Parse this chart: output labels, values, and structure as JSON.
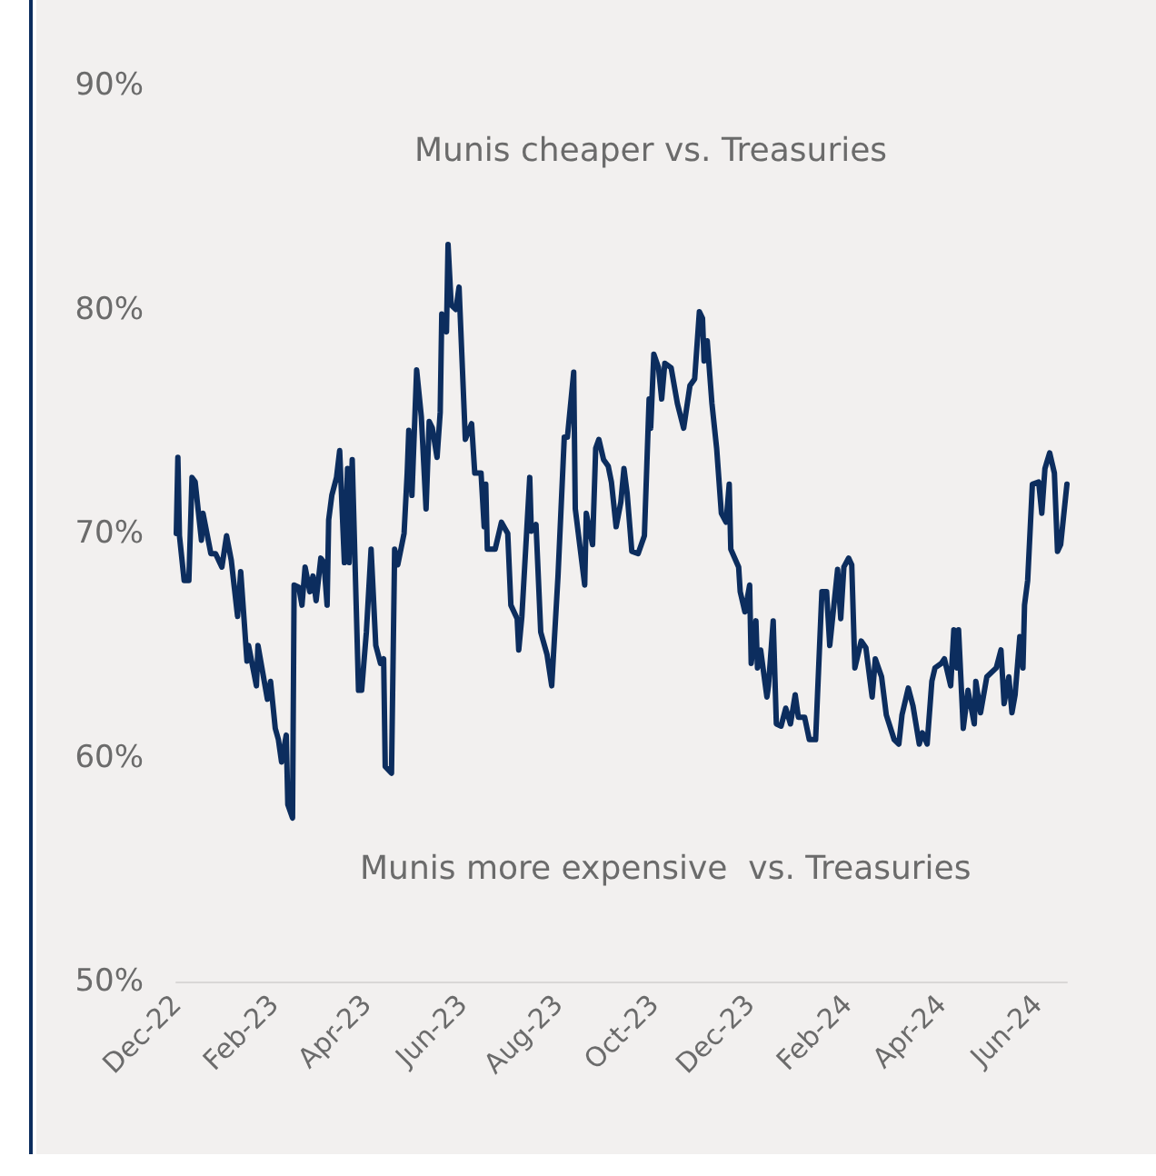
{
  "chart_data": {
    "type": "line",
    "annotations": [
      "Munis cheaper vs. Treasuries",
      "Munis more expensive  vs. Treasuries"
    ],
    "x": [
      "2022-12-01",
      "2022-12-02",
      "2022-12-03",
      "2022-12-06",
      "2022-12-09",
      "2022-12-11",
      "2022-12-13",
      "2022-12-17",
      "2022-12-18",
      "2022-12-23",
      "2022-12-26",
      "2022-12-30",
      "2023-01-02",
      "2023-01-05",
      "2023-01-09",
      "2023-01-11",
      "2023-01-15",
      "2023-01-16",
      "2023-01-21",
      "2023-01-22",
      "2023-01-28",
      "2023-01-30",
      "2023-02-02",
      "2023-02-04",
      "2023-02-06",
      "2023-02-09",
      "2023-02-10",
      "2023-02-13",
      "2023-02-14",
      "2023-02-17",
      "2023-02-19",
      "2023-02-21",
      "2023-02-24",
      "2023-02-26",
      "2023-02-28",
      "2023-03-03",
      "2023-03-05",
      "2023-03-07",
      "2023-03-08",
      "2023-03-10",
      "2023-03-13",
      "2023-03-15",
      "2023-03-18",
      "2023-03-20",
      "2023-03-21",
      "2023-03-23",
      "2023-03-27",
      "2023-03-29",
      "2023-04-01",
      "2023-04-04",
      "2023-04-07",
      "2023-04-10",
      "2023-04-12",
      "2023-04-13",
      "2023-04-17",
      "2023-04-19",
      "2023-04-21",
      "2023-04-25",
      "2023-04-27",
      "2023-04-28",
      "2023-04-30",
      "2023-05-03",
      "2023-05-06",
      "2023-05-09",
      "2023-05-11",
      "2023-05-13",
      "2023-05-16",
      "2023-05-18",
      "2023-05-19",
      "2023-05-22",
      "2023-05-23",
      "2023-05-25",
      "2023-05-28",
      "2023-05-30",
      "2023-06-03",
      "2023-06-07",
      "2023-06-09",
      "2023-06-13",
      "2023-06-15",
      "2023-06-16",
      "2023-06-17",
      "2023-06-22",
      "2023-06-26",
      "2023-06-30",
      "2023-07-02",
      "2023-07-06",
      "2023-07-07",
      "2023-07-09",
      "2023-07-14",
      "2023-07-15",
      "2023-07-18",
      "2023-07-21",
      "2023-07-25",
      "2023-07-28",
      "2023-08-01",
      "2023-08-05",
      "2023-08-07",
      "2023-08-11",
      "2023-08-12",
      "2023-08-18",
      "2023-08-19",
      "2023-08-23",
      "2023-08-25",
      "2023-08-27",
      "2023-08-30",
      "2023-09-02",
      "2023-09-04",
      "2023-09-07",
      "2023-09-10",
      "2023-09-12",
      "2023-09-14",
      "2023-09-17",
      "2023-09-21",
      "2023-09-25",
      "2023-09-28",
      "2023-09-29",
      "2023-10-01",
      "2023-10-04",
      "2023-10-06",
      "2023-10-08",
      "2023-10-12",
      "2023-10-16",
      "2023-10-20",
      "2023-10-24",
      "2023-10-27",
      "2023-10-30",
      "2023-11-01",
      "2023-11-02",
      "2023-11-04",
      "2023-11-07",
      "2023-11-10",
      "2023-11-13",
      "2023-11-16",
      "2023-11-18",
      "2023-11-19",
      "2023-11-24",
      "2023-11-25",
      "2023-11-28",
      "2023-12-01",
      "2023-12-02",
      "2023-12-05",
      "2023-12-06",
      "2023-12-08",
      "2023-12-12",
      "2023-12-13",
      "2023-12-16",
      "2023-12-18",
      "2023-12-21",
      "2023-12-24",
      "2023-12-27",
      "2023-12-30",
      "2024-01-01",
      "2024-01-05",
      "2024-01-08",
      "2024-01-12",
      "2024-01-16",
      "2024-01-19",
      "2024-01-21",
      "2024-01-26",
      "2024-01-28",
      "2024-01-30",
      "2024-02-02",
      "2024-02-04",
      "2024-02-06",
      "2024-02-10",
      "2024-02-13",
      "2024-02-17",
      "2024-02-19",
      "2024-02-23",
      "2024-02-26",
      "2024-03-02",
      "2024-03-05",
      "2024-03-07",
      "2024-03-11",
      "2024-03-14",
      "2024-03-18",
      "2024-03-20",
      "2024-03-23",
      "2024-03-26",
      "2024-03-28",
      "2024-04-01",
      "2024-04-03",
      "2024-04-07",
      "2024-04-09",
      "2024-04-11",
      "2024-04-12",
      "2024-04-15",
      "2024-04-18",
      "2024-04-22",
      "2024-04-23",
      "2024-04-26",
      "2024-04-30",
      "2024-05-06",
      "2024-05-09",
      "2024-05-11",
      "2024-05-14",
      "2024-05-16",
      "2024-05-18",
      "2024-05-21",
      "2024-05-23",
      "2024-05-24",
      "2024-05-26",
      "2024-05-29",
      "2024-06-02",
      "2024-06-04",
      "2024-06-06",
      "2024-06-09",
      "2024-06-12",
      "2024-06-14",
      "2024-06-16",
      "2024-06-20"
    ],
    "series": [
      {
        "color": "#0c2d5e",
        "values": [
          70.0,
          73.4,
          69.9,
          67.9,
          67.9,
          72.5,
          72.3,
          69.7,
          70.9,
          69.1,
          69.1,
          68.5,
          69.9,
          68.8,
          66.3,
          68.3,
          64.3,
          65.0,
          63.2,
          65.0,
          62.6,
          63.4,
          61.3,
          60.8,
          59.8,
          61.0,
          57.9,
          57.3,
          67.7,
          67.6,
          66.8,
          68.5,
          67.4,
          68.1,
          67.0,
          68.9,
          68.7,
          66.8,
          70.6,
          71.7,
          72.5,
          73.7,
          68.7,
          72.9,
          68.7,
          73.3,
          63.0,
          63.0,
          65.6,
          69.3,
          65.0,
          64.2,
          64.4,
          59.6,
          59.3,
          69.3,
          68.6,
          70.0,
          72.7,
          74.6,
          71.7,
          77.3,
          75.2,
          71.1,
          75.0,
          74.7,
          73.4,
          75.4,
          79.8,
          79.0,
          82.9,
          80.2,
          80.0,
          81.0,
          74.2,
          74.9,
          72.7,
          72.7,
          70.3,
          72.2,
          69.3,
          69.3,
          70.5,
          70.0,
          66.8,
          66.2,
          64.8,
          66.3,
          72.5,
          70.1,
          70.4,
          65.6,
          64.6,
          63.2,
          68.1,
          74.3,
          74.3,
          77.2,
          71.1,
          67.7,
          70.9,
          69.5,
          73.8,
          74.2,
          73.3,
          73.0,
          72.3,
          70.3,
          71.4,
          72.9,
          71.8,
          69.2,
          69.1,
          69.9,
          76.0,
          74.7,
          78.0,
          77.4,
          76.0,
          77.6,
          77.4,
          75.8,
          74.7,
          76.6,
          76.9,
          79.9,
          79.6,
          77.7,
          78.6,
          75.8,
          73.8,
          70.9,
          70.5,
          72.2,
          69.3,
          68.5,
          67.4,
          66.5,
          67.7,
          64.2,
          66.1,
          64.0,
          64.8,
          62.7,
          63.2,
          66.1,
          61.5,
          61.4,
          62.2,
          61.5,
          62.8,
          61.8,
          61.8,
          60.8,
          60.8,
          67.4,
          67.4,
          65.0,
          68.4,
          66.2,
          68.5,
          68.9,
          68.6,
          64.0,
          65.2,
          64.9,
          62.7,
          64.4,
          63.6,
          61.9,
          60.8,
          60.6,
          61.9,
          63.1,
          62.3,
          60.6,
          61.1,
          60.6,
          63.4,
          64.0,
          64.2,
          64.4,
          63.2,
          65.7,
          64.0,
          65.7,
          61.3,
          63.0,
          61.5,
          63.4,
          62.0,
          63.6,
          64.0,
          64.8,
          62.4,
          63.6,
          62.0,
          62.8,
          65.4,
          64.0,
          66.8,
          67.9,
          72.2,
          72.3,
          70.9,
          72.9,
          73.6,
          72.7,
          69.2,
          69.5,
          72.2
        ]
      }
    ],
    "xticks": [
      {
        "value": "2022-12-01",
        "label": "Dec-22"
      },
      {
        "value": "2023-02-01",
        "label": "Feb-23"
      },
      {
        "value": "2023-04-01",
        "label": "Apr-23"
      },
      {
        "value": "2023-06-01",
        "label": "Jun-23"
      },
      {
        "value": "2023-08-01",
        "label": "Aug-23"
      },
      {
        "value": "2023-10-01",
        "label": "Oct-23"
      },
      {
        "value": "2023-12-01",
        "label": "Dec-23"
      },
      {
        "value": "2024-02-01",
        "label": "Feb-24"
      },
      {
        "value": "2024-04-01",
        "label": "Apr-24"
      },
      {
        "value": "2024-06-01",
        "label": "Jun-24"
      }
    ],
    "xlim": [
      "2022-12-01",
      "2024-06-20"
    ],
    "ylim": [
      50,
      90
    ],
    "yticks": [
      {
        "value": 50,
        "label": "50%"
      },
      {
        "value": 60,
        "label": "60%"
      },
      {
        "value": 70,
        "label": "70%"
      },
      {
        "value": 80,
        "label": "80%"
      },
      {
        "value": 90,
        "label": "90%"
      }
    ],
    "grid": false,
    "marker": "none",
    "line_style": "solid"
  }
}
